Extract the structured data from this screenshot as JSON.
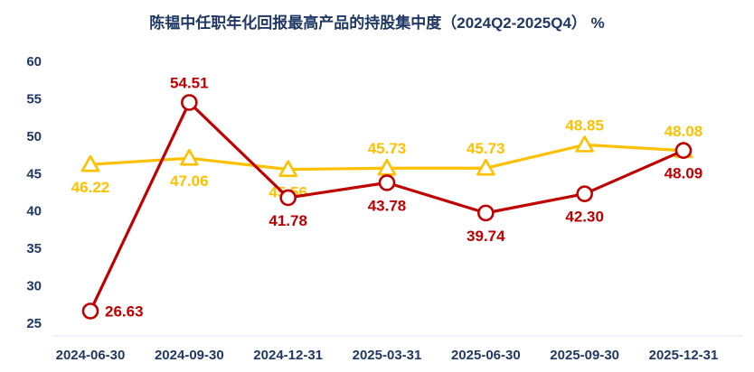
{
  "chart_data": {
    "type": "line",
    "title": "陈韫中任职年化回报最高产品的持股集中度（2024Q2-2025Q4） %",
    "categories": [
      "2024-06-30",
      "2024-09-30",
      "2024-12-31",
      "2025-03-31",
      "2025-06-30",
      "2025-09-30",
      "2025-12-31"
    ],
    "series": [
      {
        "name": "yellow-series",
        "color": "#FFC000",
        "marker": "triangle",
        "values": [
          46.22,
          47.06,
          45.56,
          45.73,
          45.73,
          48.85,
          48.08
        ],
        "labels": [
          "46.22",
          "47.06",
          "45.56",
          "45.73",
          "45.73",
          "48.85",
          "48.08"
        ],
        "label_positions": [
          "below",
          "below",
          "below",
          "above",
          "above",
          "above",
          "above"
        ]
      },
      {
        "name": "red-series",
        "color": "#C00000",
        "marker": "circle",
        "values": [
          26.63,
          54.51,
          41.78,
          43.78,
          39.74,
          42.3,
          48.09
        ],
        "labels": [
          "26.63",
          "54.51",
          "41.78",
          "43.78",
          "39.74",
          "42.30",
          "48.09"
        ],
        "label_positions": [
          "right",
          "above",
          "below",
          "below",
          "below",
          "below",
          "below"
        ]
      }
    ],
    "ylim": [
      25,
      60
    ],
    "ytick_step": 5,
    "grid": false,
    "legend": "none",
    "xlabel": "",
    "ylabel": "",
    "axis_text_color": "#1F3864",
    "background_color": "#FFFFFF"
  }
}
